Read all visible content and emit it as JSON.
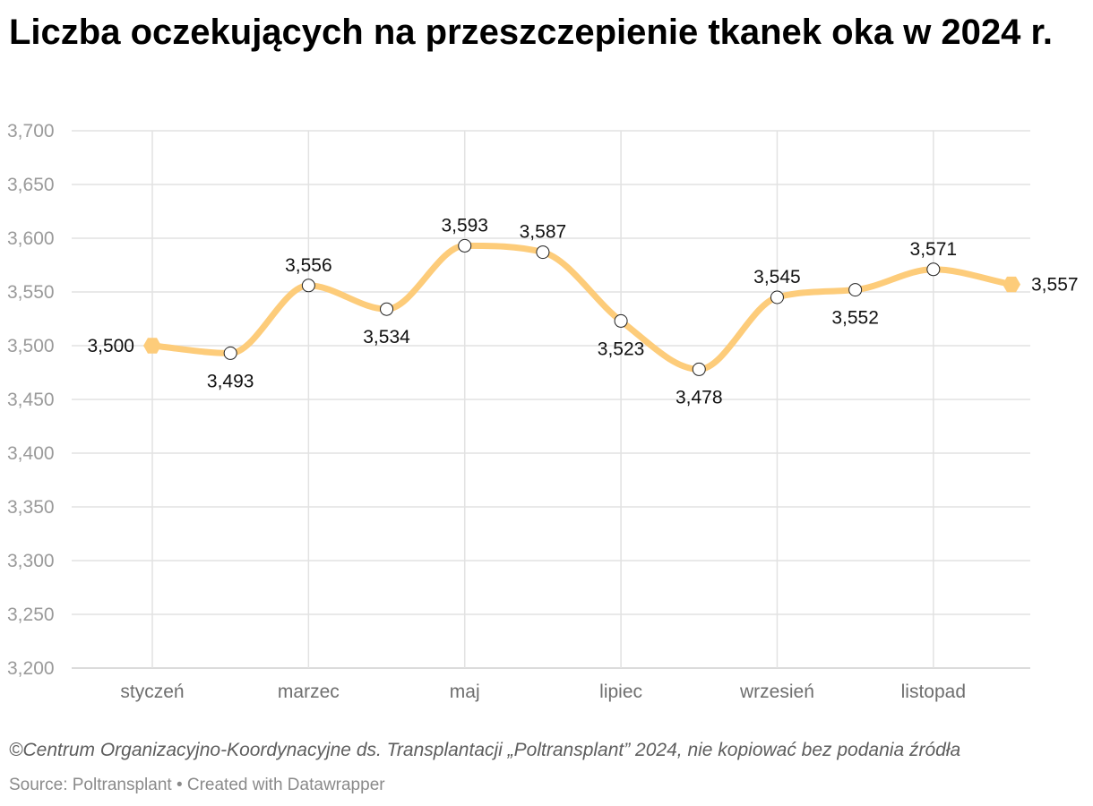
{
  "chart_data": {
    "type": "line",
    "title": "Liczba oczekujących na przeszczepienie tkanek oka w 2024 r.",
    "x": [
      1,
      2,
      3,
      4,
      5,
      6,
      7,
      8,
      9,
      10,
      11,
      12
    ],
    "values": [
      3500,
      3493,
      3556,
      3534,
      3593,
      3587,
      3523,
      3478,
      3545,
      3552,
      3571,
      3557
    ],
    "value_labels": [
      "3,500",
      "3,493",
      "3,556",
      "3,534",
      "3,593",
      "3,587",
      "3,523",
      "3,478",
      "3,545",
      "3,552",
      "3,571",
      "3,557"
    ],
    "label_positions": [
      "left",
      "below",
      "above",
      "below",
      "above",
      "above",
      "below",
      "below",
      "above",
      "below",
      "above",
      "right"
    ],
    "x_ticks": [
      {
        "x": 1,
        "label": "styczeń"
      },
      {
        "x": 3,
        "label": "marzec"
      },
      {
        "x": 5,
        "label": "maj"
      },
      {
        "x": 7,
        "label": "lipiec"
      },
      {
        "x": 9,
        "label": "wrzesień"
      },
      {
        "x": 11,
        "label": "listopad"
      }
    ],
    "y_ticks": [
      3200,
      3250,
      3300,
      3350,
      3400,
      3450,
      3500,
      3550,
      3600,
      3650,
      3700
    ],
    "y_tick_labels": [
      "3,200",
      "3,250",
      "3,300",
      "3,350",
      "3,400",
      "3,450",
      "3,500",
      "3,550",
      "3,600",
      "3,650",
      "3,700"
    ],
    "ylim": [
      3200,
      3700
    ],
    "xlim": [
      1,
      12
    ],
    "grid": true,
    "xlabel": "",
    "ylabel": "",
    "line_color": "#fdcc7a",
    "grid_color": "#e2e2e2",
    "note": "©Centrum Organizacyjno-Koordynacyjne ds. Transplantacji „Poltransplant” 2024, nie kopiować bez podania źródła",
    "source": "Source: Poltransplant • Created with Datawrapper"
  }
}
